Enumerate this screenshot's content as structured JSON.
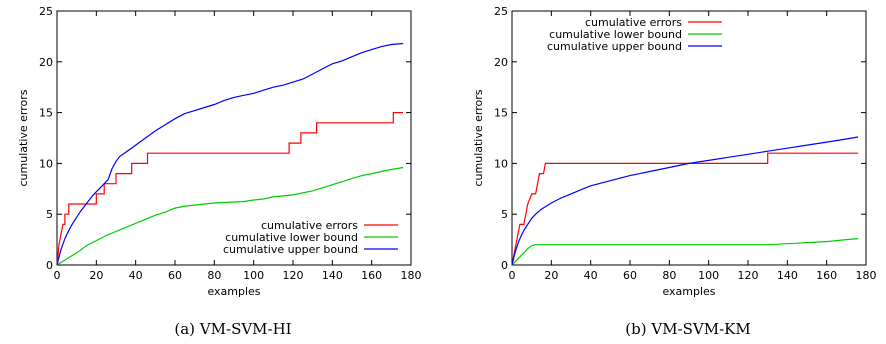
{
  "chart_data": [
    {
      "type": "line",
      "caption": "(a) VM-SVM-HI",
      "xlabel": "examples",
      "ylabel": "cumulative errors",
      "xlim": [
        0,
        180
      ],
      "ylim": [
        0,
        25
      ],
      "xticks": [
        0,
        20,
        40,
        60,
        80,
        100,
        120,
        140,
        160,
        180
      ],
      "yticks": [
        0,
        5,
        10,
        15,
        20,
        25
      ],
      "legend_position": "bottom-right",
      "series": [
        {
          "name": "cumulative errors",
          "color": "#ff0000",
          "points": [
            [
              0,
              0
            ],
            [
              1,
              2
            ],
            [
              2,
              3
            ],
            [
              3,
              4
            ],
            [
              4,
              4
            ],
            [
              4,
              5
            ],
            [
              6,
              5
            ],
            [
              6,
              6
            ],
            [
              20,
              6
            ],
            [
              20,
              7
            ],
            [
              24,
              7
            ],
            [
              24,
              8
            ],
            [
              30,
              8
            ],
            [
              30,
              9
            ],
            [
              38,
              9
            ],
            [
              38,
              10
            ],
            [
              46,
              10
            ],
            [
              46,
              11
            ],
            [
              118,
              11
            ],
            [
              118,
              12
            ],
            [
              124,
              12
            ],
            [
              124,
              13
            ],
            [
              132,
              13
            ],
            [
              132,
              14
            ],
            [
              171,
              14
            ],
            [
              171,
              15
            ],
            [
              176,
              15
            ]
          ]
        },
        {
          "name": "cumulative lower bound",
          "color": "#00cc00",
          "points": [
            [
              0,
              0
            ],
            [
              5,
              0.6
            ],
            [
              10,
              1.2
            ],
            [
              15,
              1.9
            ],
            [
              20,
              2.4
            ],
            [
              25,
              2.9
            ],
            [
              30,
              3.3
            ],
            [
              35,
              3.7
            ],
            [
              40,
              4.1
            ],
            [
              45,
              4.5
            ],
            [
              50,
              4.9
            ],
            [
              55,
              5.2
            ],
            [
              60,
              5.6
            ],
            [
              65,
              5.8
            ],
            [
              70,
              5.9
            ],
            [
              75,
              6.0
            ],
            [
              80,
              6.1
            ],
            [
              85,
              6.15
            ],
            [
              90,
              6.2
            ],
            [
              95,
              6.25
            ],
            [
              100,
              6.4
            ],
            [
              105,
              6.5
            ],
            [
              110,
              6.7
            ],
            [
              115,
              6.8
            ],
            [
              120,
              6.9
            ],
            [
              125,
              7.1
            ],
            [
              130,
              7.3
            ],
            [
              135,
              7.6
            ],
            [
              140,
              7.9
            ],
            [
              145,
              8.2
            ],
            [
              150,
              8.5
            ],
            [
              155,
              8.8
            ],
            [
              160,
              9.0
            ],
            [
              165,
              9.2
            ],
            [
              170,
              9.4
            ],
            [
              176,
              9.6
            ]
          ]
        },
        {
          "name": "cumulative upper bound",
          "color": "#0000ff",
          "points": [
            [
              0,
              0
            ],
            [
              2,
              1.5
            ],
            [
              4,
              2.6
            ],
            [
              6,
              3.4
            ],
            [
              8,
              4.1
            ],
            [
              10,
              4.7
            ],
            [
              12,
              5.3
            ],
            [
              14,
              5.8
            ],
            [
              16,
              6.3
            ],
            [
              18,
              6.8
            ],
            [
              20,
              7.2
            ],
            [
              22,
              7.6
            ],
            [
              24,
              8.0
            ],
            [
              26,
              8.4
            ],
            [
              28,
              9.5
            ],
            [
              30,
              10.2
            ],
            [
              32,
              10.7
            ],
            [
              35,
              11.1
            ],
            [
              40,
              11.8
            ],
            [
              45,
              12.5
            ],
            [
              50,
              13.2
            ],
            [
              55,
              13.8
            ],
            [
              60,
              14.4
            ],
            [
              65,
              14.9
            ],
            [
              70,
              15.2
            ],
            [
              75,
              15.5
            ],
            [
              80,
              15.8
            ],
            [
              85,
              16.2
            ],
            [
              90,
              16.5
            ],
            [
              95,
              16.7
            ],
            [
              100,
              16.9
            ],
            [
              105,
              17.2
            ],
            [
              110,
              17.5
            ],
            [
              115,
              17.7
            ],
            [
              120,
              18.0
            ],
            [
              125,
              18.3
            ],
            [
              130,
              18.8
            ],
            [
              135,
              19.3
            ],
            [
              140,
              19.8
            ],
            [
              145,
              20.1
            ],
            [
              150,
              20.5
            ],
            [
              155,
              20.9
            ],
            [
              160,
              21.2
            ],
            [
              165,
              21.5
            ],
            [
              170,
              21.7
            ],
            [
              176,
              21.8
            ]
          ]
        }
      ]
    },
    {
      "type": "line",
      "caption": "(b) VM-SVM-KM",
      "xlabel": "examples",
      "ylabel": "cumulative errors",
      "xlim": [
        0,
        180
      ],
      "ylim": [
        0,
        25
      ],
      "xticks": [
        0,
        20,
        40,
        60,
        80,
        100,
        120,
        140,
        160,
        180
      ],
      "yticks": [
        0,
        5,
        10,
        15,
        20,
        25
      ],
      "legend_position": "top-left",
      "series": [
        {
          "name": "cumulative errors",
          "color": "#ff0000",
          "points": [
            [
              0,
              0
            ],
            [
              1,
              1
            ],
            [
              2,
              2
            ],
            [
              3,
              3
            ],
            [
              4,
              4
            ],
            [
              6,
              4
            ],
            [
              7,
              5
            ],
            [
              8,
              6
            ],
            [
              10,
              7
            ],
            [
              12,
              7
            ],
            [
              13,
              8
            ],
            [
              14,
              9
            ],
            [
              16,
              9
            ],
            [
              17,
              10
            ],
            [
              130,
              10
            ],
            [
              130,
              11
            ],
            [
              176,
              11
            ]
          ]
        },
        {
          "name": "cumulative lower bound",
          "color": "#00cc00",
          "points": [
            [
              0,
              0
            ],
            [
              2,
              0.4
            ],
            [
              4,
              0.8
            ],
            [
              6,
              1.2
            ],
            [
              8,
              1.6
            ],
            [
              10,
              1.9
            ],
            [
              12,
              2.0
            ],
            [
              20,
              2.0
            ],
            [
              40,
              2.0
            ],
            [
              60,
              2.0
            ],
            [
              80,
              2.0
            ],
            [
              100,
              2.0
            ],
            [
              120,
              2.0
            ],
            [
              130,
              2.0
            ],
            [
              135,
              2.05
            ],
            [
              140,
              2.1
            ],
            [
              145,
              2.15
            ],
            [
              150,
              2.2
            ],
            [
              155,
              2.25
            ],
            [
              160,
              2.3
            ],
            [
              165,
              2.4
            ],
            [
              170,
              2.5
            ],
            [
              176,
              2.6
            ]
          ]
        },
        {
          "name": "cumulative upper bound",
          "color": "#0000ff",
          "points": [
            [
              0,
              0
            ],
            [
              1,
              0.8
            ],
            [
              2,
              1.5
            ],
            [
              3,
              2.1
            ],
            [
              4,
              2.6
            ],
            [
              5,
              3.0
            ],
            [
              6,
              3.4
            ],
            [
              8,
              4.0
            ],
            [
              10,
              4.6
            ],
            [
              12,
              5.0
            ],
            [
              15,
              5.5
            ],
            [
              20,
              6.1
            ],
            [
              25,
              6.6
            ],
            [
              30,
              7.0
            ],
            [
              35,
              7.4
            ],
            [
              40,
              7.8
            ],
            [
              50,
              8.3
            ],
            [
              60,
              8.8
            ],
            [
              70,
              9.2
            ],
            [
              80,
              9.6
            ],
            [
              90,
              10.0
            ],
            [
              100,
              10.3
            ],
            [
              110,
              10.6
            ],
            [
              120,
              10.9
            ],
            [
              130,
              11.2
            ],
            [
              140,
              11.5
            ],
            [
              150,
              11.8
            ],
            [
              160,
              12.1
            ],
            [
              170,
              12.4
            ],
            [
              176,
              12.6
            ]
          ]
        }
      ]
    }
  ]
}
